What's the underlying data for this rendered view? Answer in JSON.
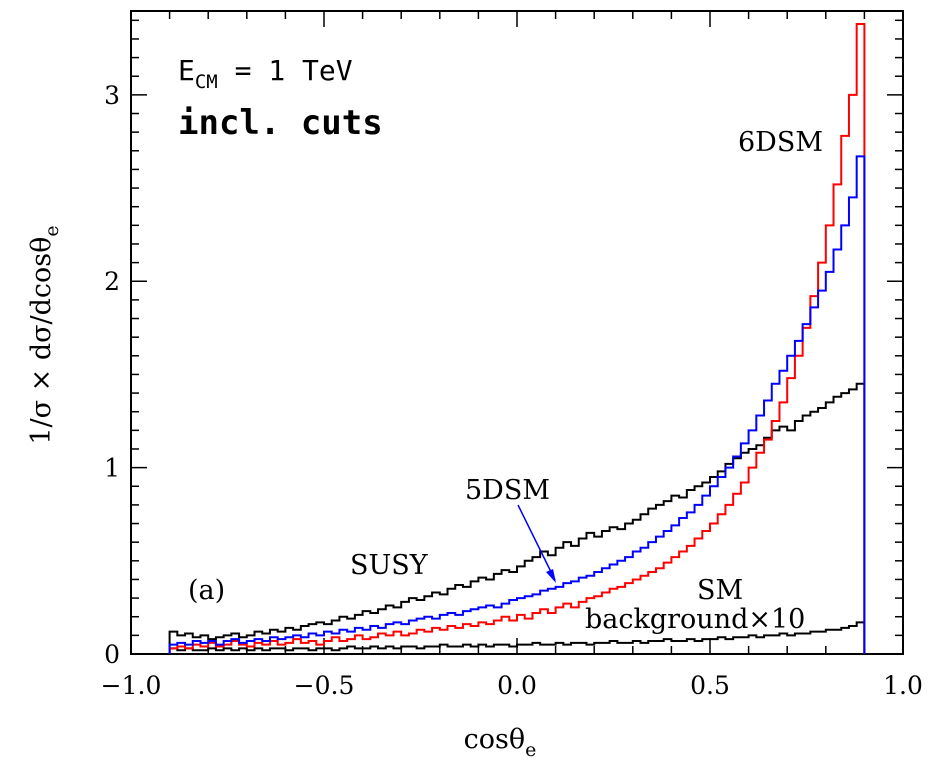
{
  "chart_data": {
    "type": "line",
    "step": true,
    "xlabel": "cosθ",
    "xlabel_sub": "e",
    "ylabel": "1/σ × dσ/dcosθ",
    "ylabel_sub": "e",
    "xlim": [
      -1.0,
      1.0
    ],
    "ylim": [
      0,
      3.45
    ],
    "x_ticks": [
      -1.0,
      -0.5,
      0.0,
      0.5,
      1.0
    ],
    "x_tick_labels": [
      "−1.0",
      "−0.5",
      "0.0",
      "0.5",
      "1.0"
    ],
    "y_ticks": [
      0,
      1,
      2,
      3
    ],
    "y_tick_labels": [
      "0",
      "1",
      "2",
      "3"
    ],
    "grid": false,
    "annotations": {
      "energy": "E",
      "energy_sub": "CM",
      "energy_value": " = 1 TeV",
      "cuts": "incl. cuts",
      "panel": "(a)",
      "label_6dsm": "6DSM",
      "label_5dsm": "5DSM",
      "label_susy": "SUSY",
      "label_sm": "SM",
      "label_bkg": "background×10"
    },
    "colors": {
      "6DSM": "#ff0000",
      "5DSM": "#0000ff",
      "SUSY": "#000000",
      "SM": "#000000"
    },
    "bin_edges": {
      "start": -0.9,
      "end": 0.9,
      "count": 90
    },
    "series": [
      {
        "name": "6DSM",
        "values": [
          0.03,
          0.04,
          0.03,
          0.05,
          0.04,
          0.06,
          0.04,
          0.05,
          0.07,
          0.05,
          0.04,
          0.06,
          0.05,
          0.07,
          0.05,
          0.06,
          0.08,
          0.06,
          0.07,
          0.05,
          0.07,
          0.09,
          0.07,
          0.08,
          0.1,
          0.08,
          0.09,
          0.11,
          0.1,
          0.12,
          0.1,
          0.11,
          0.13,
          0.12,
          0.14,
          0.13,
          0.15,
          0.14,
          0.16,
          0.15,
          0.17,
          0.16,
          0.18,
          0.2,
          0.18,
          0.21,
          0.19,
          0.22,
          0.24,
          0.22,
          0.25,
          0.27,
          0.25,
          0.28,
          0.3,
          0.31,
          0.33,
          0.35,
          0.36,
          0.38,
          0.4,
          0.42,
          0.44,
          0.46,
          0.49,
          0.52,
          0.55,
          0.58,
          0.62,
          0.66,
          0.7,
          0.75,
          0.8,
          0.86,
          0.92,
          1.0,
          1.08,
          1.15,
          1.25,
          1.35,
          1.48,
          1.6,
          1.75,
          1.92,
          2.1,
          2.3,
          2.52,
          2.78,
          3.0,
          3.38
        ]
      },
      {
        "name": "5DSM",
        "values": [
          0.05,
          0.06,
          0.05,
          0.07,
          0.06,
          0.07,
          0.05,
          0.07,
          0.08,
          0.06,
          0.07,
          0.08,
          0.07,
          0.09,
          0.08,
          0.09,
          0.1,
          0.09,
          0.11,
          0.1,
          0.12,
          0.11,
          0.13,
          0.12,
          0.14,
          0.13,
          0.15,
          0.14,
          0.16,
          0.17,
          0.16,
          0.18,
          0.19,
          0.2,
          0.19,
          0.21,
          0.22,
          0.21,
          0.23,
          0.24,
          0.25,
          0.26,
          0.25,
          0.27,
          0.29,
          0.3,
          0.31,
          0.32,
          0.34,
          0.35,
          0.36,
          0.38,
          0.39,
          0.41,
          0.42,
          0.44,
          0.46,
          0.48,
          0.5,
          0.52,
          0.55,
          0.57,
          0.6,
          0.63,
          0.66,
          0.69,
          0.73,
          0.76,
          0.8,
          0.85,
          0.9,
          0.95,
          1.0,
          1.06,
          1.13,
          1.2,
          1.28,
          1.36,
          1.45,
          1.52,
          1.6,
          1.68,
          1.77,
          1.86,
          1.95,
          2.05,
          2.17,
          2.3,
          2.45,
          2.67
        ]
      },
      {
        "name": "SUSY",
        "values": [
          0.12,
          0.1,
          0.11,
          0.09,
          0.1,
          0.08,
          0.09,
          0.1,
          0.11,
          0.09,
          0.1,
          0.12,
          0.11,
          0.13,
          0.12,
          0.14,
          0.13,
          0.15,
          0.16,
          0.17,
          0.16,
          0.18,
          0.2,
          0.19,
          0.21,
          0.23,
          0.22,
          0.24,
          0.26,
          0.25,
          0.28,
          0.3,
          0.29,
          0.31,
          0.33,
          0.32,
          0.35,
          0.37,
          0.36,
          0.39,
          0.41,
          0.4,
          0.43,
          0.45,
          0.44,
          0.47,
          0.5,
          0.52,
          0.55,
          0.53,
          0.57,
          0.6,
          0.58,
          0.62,
          0.65,
          0.63,
          0.66,
          0.68,
          0.67,
          0.7,
          0.72,
          0.75,
          0.78,
          0.8,
          0.82,
          0.85,
          0.84,
          0.88,
          0.9,
          0.92,
          0.95,
          0.98,
          1.02,
          1.05,
          1.08,
          1.1,
          1.12,
          1.16,
          1.2,
          1.22,
          1.2,
          1.25,
          1.28,
          1.3,
          1.32,
          1.35,
          1.38,
          1.4,
          1.42,
          1.45
        ]
      },
      {
        "name": "SM",
        "values": [
          0.03,
          0.02,
          0.03,
          0.02,
          0.02,
          0.03,
          0.02,
          0.03,
          0.02,
          0.03,
          0.02,
          0.03,
          0.02,
          0.03,
          0.03,
          0.02,
          0.03,
          0.03,
          0.02,
          0.03,
          0.03,
          0.02,
          0.03,
          0.04,
          0.03,
          0.03,
          0.04,
          0.03,
          0.04,
          0.03,
          0.04,
          0.04,
          0.03,
          0.04,
          0.04,
          0.05,
          0.04,
          0.04,
          0.05,
          0.04,
          0.05,
          0.04,
          0.05,
          0.05,
          0.04,
          0.05,
          0.05,
          0.06,
          0.05,
          0.05,
          0.06,
          0.05,
          0.06,
          0.06,
          0.05,
          0.06,
          0.06,
          0.07,
          0.06,
          0.06,
          0.07,
          0.06,
          0.07,
          0.07,
          0.08,
          0.07,
          0.07,
          0.08,
          0.07,
          0.08,
          0.08,
          0.09,
          0.08,
          0.09,
          0.09,
          0.1,
          0.09,
          0.1,
          0.1,
          0.11,
          0.1,
          0.11,
          0.11,
          0.12,
          0.12,
          0.13,
          0.13,
          0.14,
          0.15,
          0.17
        ]
      }
    ]
  }
}
